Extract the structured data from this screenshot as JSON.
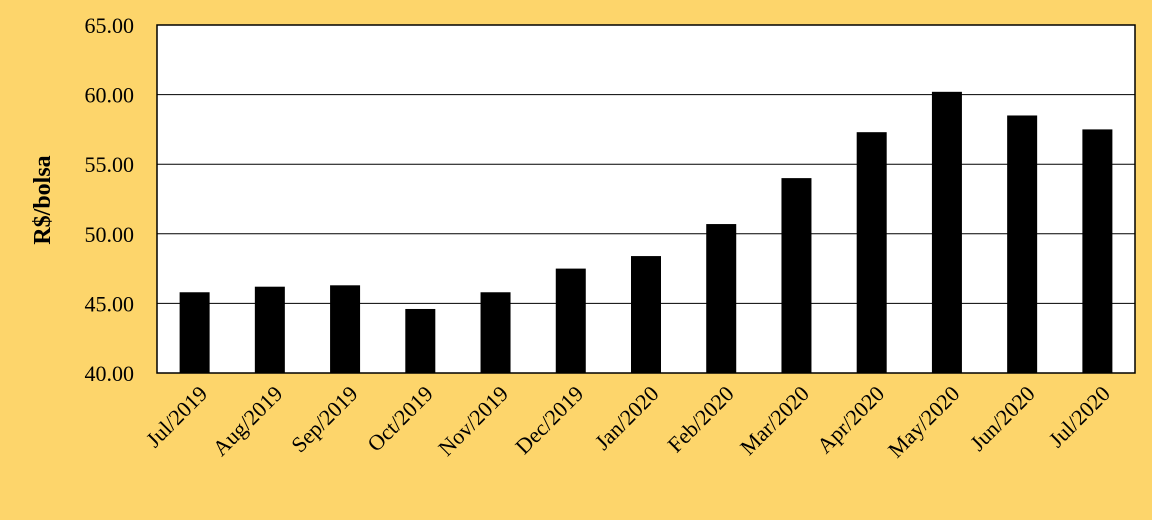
{
  "colors": {
    "background": "#FDD56B",
    "plot_area": "#FFFFFF",
    "bars": "#000000",
    "gridlines": "#000000"
  },
  "chart_data": {
    "type": "bar",
    "ylabel": "R$/bolsa",
    "ylim": [
      40,
      65
    ],
    "yticks": [
      40,
      45,
      50,
      55,
      60,
      65
    ],
    "ytick_labels": [
      "40.00",
      "45.00",
      "50.00",
      "55.00",
      "60.00",
      "65.00"
    ],
    "grid": true,
    "legend": "none",
    "categories": [
      "Jul/2019",
      "Aug/2019",
      "Sep/2019",
      "Oct/2019",
      "Nov/2019",
      "Dec/2019",
      "Jan/2020",
      "Feb/2020",
      "Mar/2020",
      "Apr/2020",
      "May/2020",
      "Jun/2020",
      "Jul/2020"
    ],
    "values": [
      45.8,
      46.2,
      46.3,
      44.6,
      45.8,
      47.5,
      48.4,
      50.7,
      54.0,
      57.3,
      60.2,
      58.5,
      57.5
    ]
  }
}
